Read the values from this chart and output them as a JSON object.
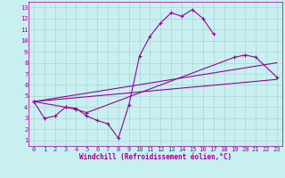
{
  "bg_color": "#c8f0f0",
  "line_color": "#990099",
  "grid_color": "#aacccc",
  "xlabel": "Windchill (Refroidissement éolien,°C)",
  "xlim": [
    -0.5,
    23.5
  ],
  "ylim": [
    0.5,
    13.5
  ],
  "xticks": [
    0,
    1,
    2,
    3,
    4,
    5,
    6,
    7,
    8,
    9,
    10,
    11,
    12,
    13,
    14,
    15,
    16,
    17,
    18,
    19,
    20,
    21,
    22,
    23
  ],
  "yticks": [
    1,
    2,
    3,
    4,
    5,
    6,
    7,
    8,
    9,
    10,
    11,
    12,
    13
  ],
  "curve1_x": [
    0,
    1,
    2,
    3,
    4,
    5,
    6,
    7,
    8,
    9,
    10,
    11,
    12,
    13,
    14,
    15,
    16,
    17
  ],
  "curve1_y": [
    4.5,
    3.0,
    3.2,
    4.0,
    3.9,
    3.2,
    2.8,
    2.5,
    1.2,
    4.2,
    8.6,
    10.4,
    11.6,
    12.5,
    12.2,
    12.8,
    12.0,
    10.6
  ],
  "curve2_x": [
    0,
    3,
    4,
    5,
    19,
    20,
    21,
    23
  ],
  "curve2_y": [
    4.5,
    4.0,
    3.8,
    3.5,
    8.5,
    8.7,
    8.5,
    6.7
  ],
  "line3_x": [
    0,
    23
  ],
  "line3_y": [
    4.5,
    6.5
  ],
  "line4_x": [
    0,
    23
  ],
  "line4_y": [
    4.5,
    8.0
  ],
  "tick_fontsize": 5,
  "xlabel_fontsize": 5.5,
  "linewidth": 0.8,
  "markersize": 2.5
}
